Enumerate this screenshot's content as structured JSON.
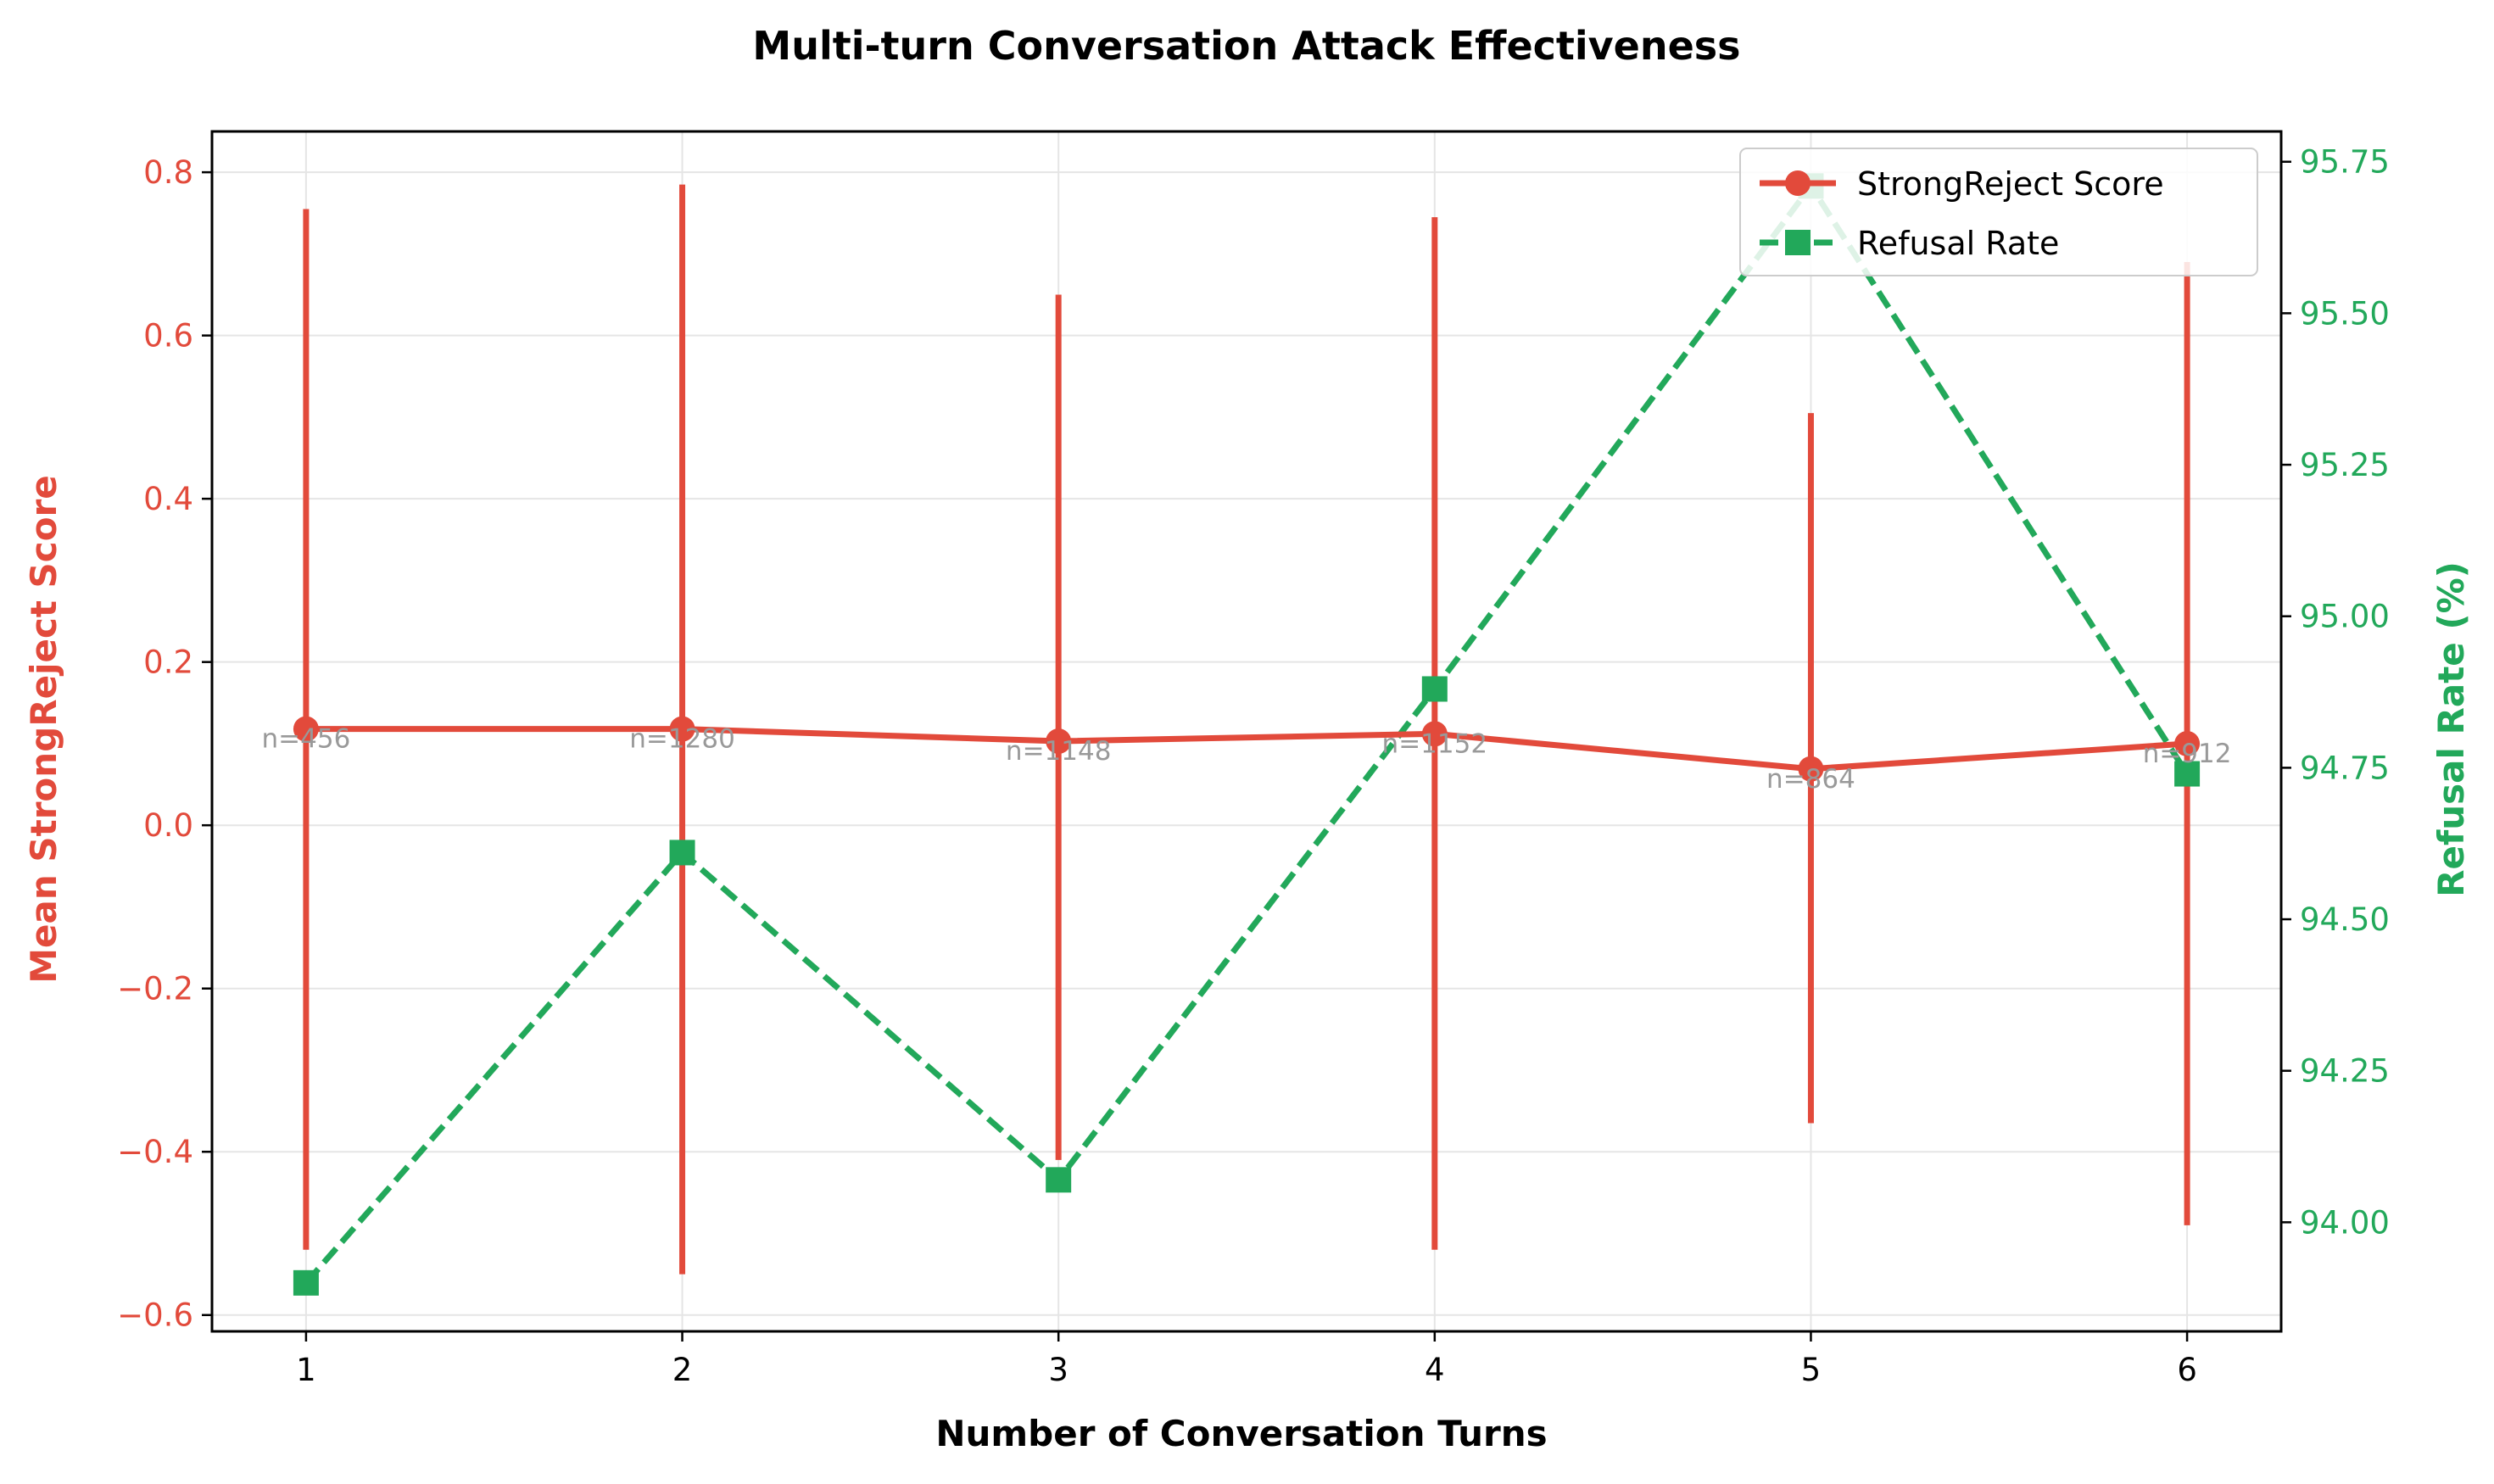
{
  "colors": {
    "score": "#e24a3b",
    "refusal": "#22a85a",
    "grid": "#e5e5e5",
    "n_label": "#999999"
  },
  "chart_data": {
    "type": "line",
    "title": "Multi-turn Conversation Attack Effectiveness",
    "xlabel": "Number of Conversation Turns",
    "ylabel_left": "Mean StrongReject Score",
    "ylabel_right": "Refusal Rate (%)",
    "x": [
      1,
      2,
      3,
      4,
      5,
      6
    ],
    "x_ticks": [
      "1",
      "2",
      "3",
      "4",
      "5",
      "6"
    ],
    "xlim": [
      0.75,
      6.25
    ],
    "ylim_left": [
      -0.62,
      0.85
    ],
    "ylim_right": [
      93.82,
      95.8
    ],
    "y_ticks_left": [
      "−0.6",
      "−0.4",
      "−0.2",
      "0.0",
      "0.2",
      "0.4",
      "0.6",
      "0.8"
    ],
    "y_tick_values_left": [
      -0.6,
      -0.4,
      -0.2,
      0.0,
      0.2,
      0.4,
      0.6,
      0.8
    ],
    "y_ticks_right": [
      "94.00",
      "94.25",
      "94.50",
      "94.75",
      "95.00",
      "95.25",
      "95.50",
      "95.75"
    ],
    "y_tick_values_right": [
      94.0,
      94.25,
      94.5,
      94.75,
      95.0,
      95.25,
      95.5,
      95.75
    ],
    "grid": true,
    "legend_position": "top-right",
    "series": [
      {
        "name": "StrongReject Score",
        "axis": "left",
        "marker": "circle",
        "linestyle": "solid",
        "values": [
          0.118,
          0.118,
          0.103,
          0.112,
          0.069,
          0.1
        ],
        "err_low": [
          -0.52,
          -0.55,
          -0.41,
          -0.52,
          -0.365,
          -0.49
        ],
        "err_high": [
          0.755,
          0.785,
          0.65,
          0.745,
          0.505,
          0.69
        ]
      },
      {
        "name": "Refusal Rate",
        "axis": "right",
        "marker": "square",
        "linestyle": "dashed",
        "values": [
          93.9,
          94.61,
          94.07,
          94.88,
          95.71,
          94.74
        ]
      }
    ],
    "annotations": [
      "n=456",
      "n=1280",
      "n=1148",
      "n=1152",
      "n=864",
      "n=912"
    ]
  }
}
